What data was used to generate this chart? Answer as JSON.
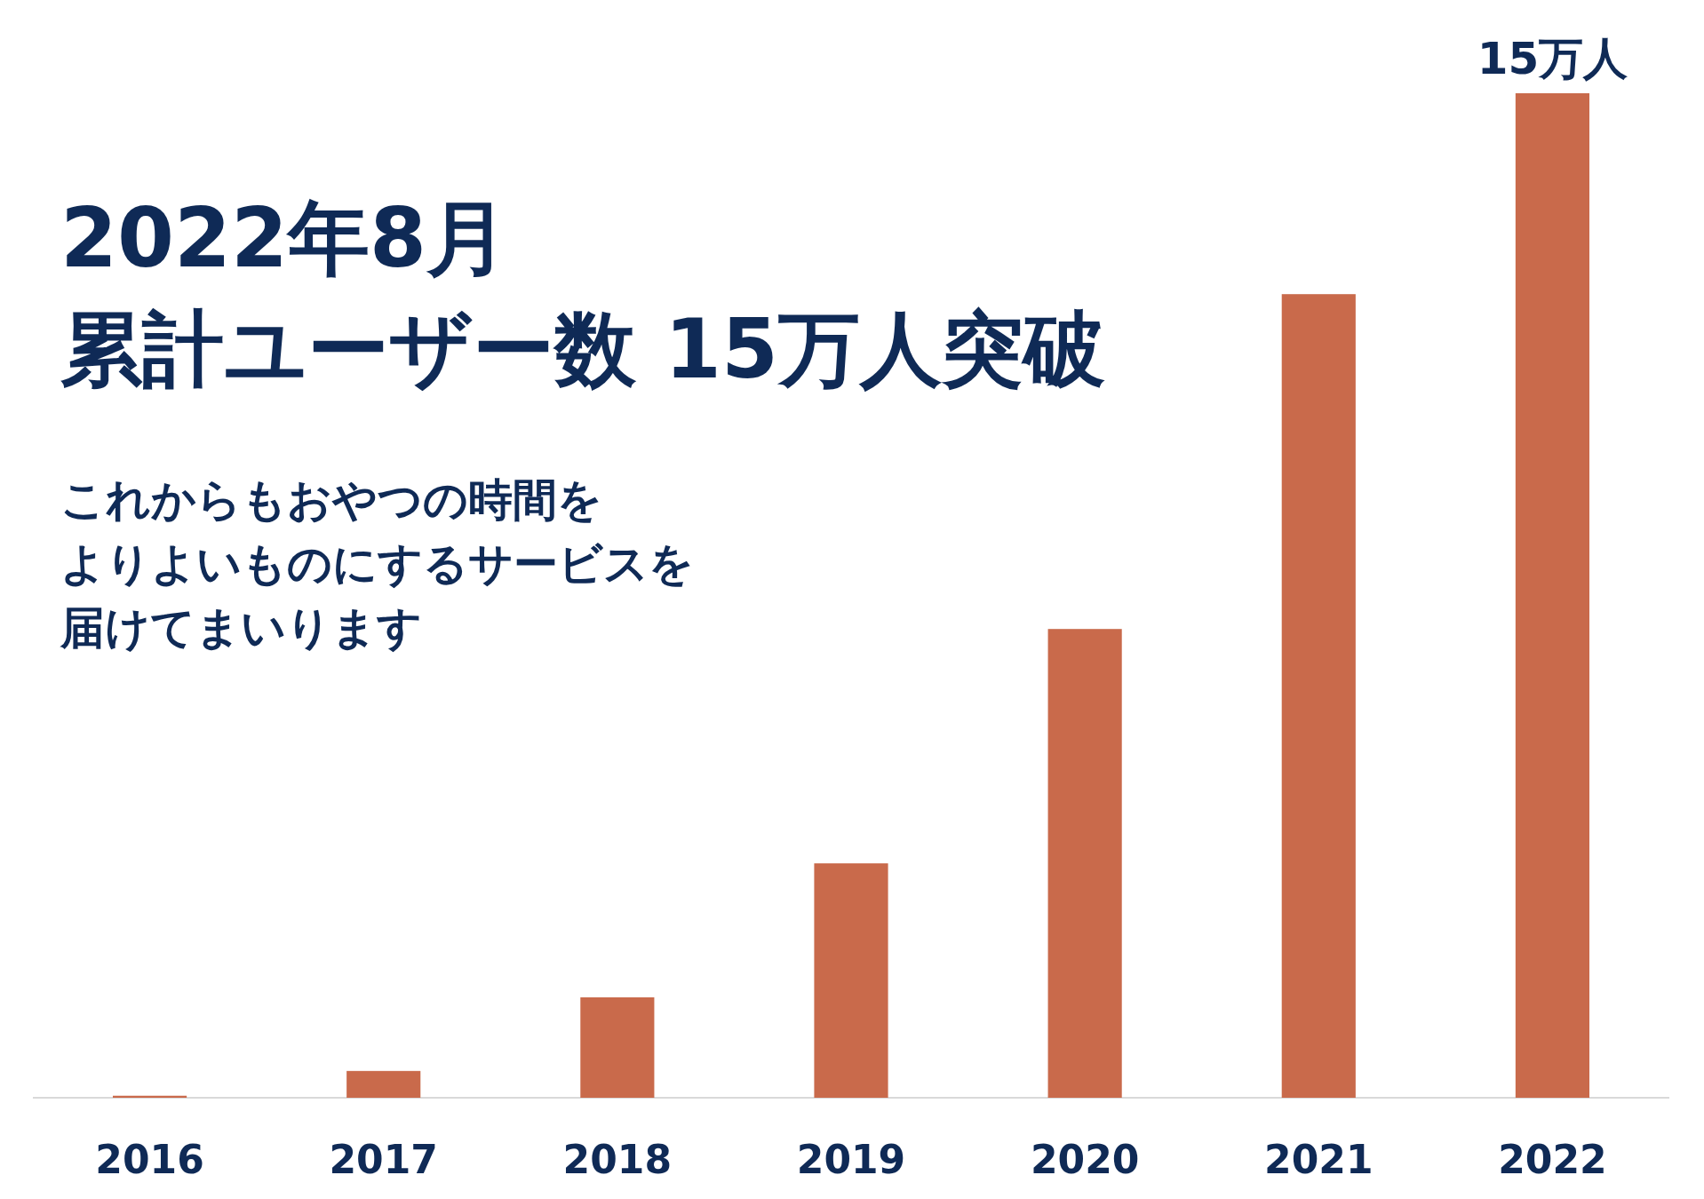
{
  "chart_data": {
    "type": "bar",
    "title": "2022年8月",
    "subtitle": "累計ユーザー数 15万人突破",
    "annotations": [
      "これからもおやつの時間を",
      "よりよいものにするサービスを",
      "届けてまいります"
    ],
    "categories": [
      "2016",
      "2017",
      "2018",
      "2019",
      "2020",
      "2021",
      "2022"
    ],
    "values": [
      0.03,
      0.4,
      1.5,
      3.5,
      7.0,
      12.0,
      15
    ],
    "value_labels": [
      null,
      null,
      null,
      null,
      null,
      null,
      "15万人"
    ],
    "color": "#c96a4b"
  }
}
